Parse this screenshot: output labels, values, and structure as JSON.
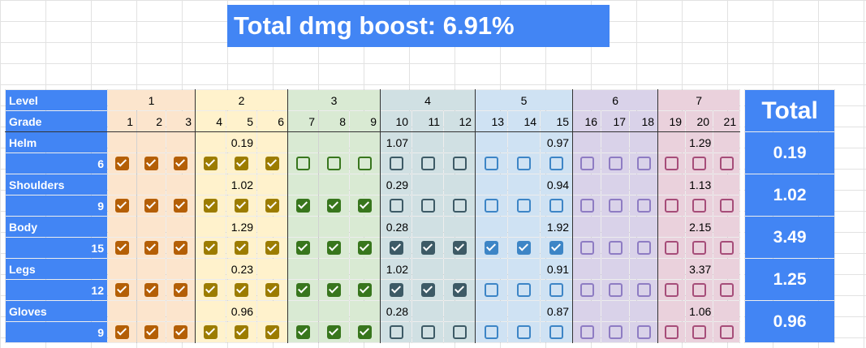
{
  "title": "Total dmg boost: 6.91%",
  "header": {
    "level_label": "Level",
    "grade_label": "Grade",
    "total_label": "Total",
    "levels": [
      "1",
      "2",
      "3",
      "4",
      "5",
      "6",
      "7"
    ],
    "grades": [
      "1",
      "2",
      "3",
      "4",
      "5",
      "6",
      "7",
      "8",
      "9",
      "10",
      "11",
      "12",
      "13",
      "14",
      "15",
      "16",
      "17",
      "18",
      "19",
      "20",
      "21"
    ]
  },
  "level_colors": {
    "bg": [
      "#fce5cd",
      "#fff2cc",
      "#d9ead3",
      "#d0e0e3",
      "#cfe2f3",
      "#d9d2e9",
      "#ead1dc"
    ],
    "box": [
      "#b45f06",
      "#9c7c00",
      "#38761d",
      "#3d5a66",
      "#3d85c6",
      "#8e7cc3",
      "#a64d79"
    ]
  },
  "gear": [
    {
      "name": "Helm",
      "grade": "6",
      "total": "0.19",
      "level_values": [
        "",
        "0.19",
        "",
        "1.07",
        "0.97",
        "",
        "1.29"
      ],
      "checked": 6
    },
    {
      "name": "Shoulders",
      "grade": "9",
      "total": "1.02",
      "level_values": [
        "",
        "1.02",
        "",
        "0.29",
        "0.94",
        "",
        "1.13"
      ],
      "checked": 9
    },
    {
      "name": "Body",
      "grade": "15",
      "total": "3.49",
      "level_values": [
        "",
        "1.29",
        "",
        "0.28",
        "1.92",
        "",
        "2.15"
      ],
      "checked": 15
    },
    {
      "name": "Legs",
      "grade": "12",
      "total": "1.25",
      "level_values": [
        "",
        "0.23",
        "",
        "1.02",
        "0.91",
        "",
        "3.37"
      ],
      "checked": 12
    },
    {
      "name": "Gloves",
      "grade": "9",
      "total": "0.96",
      "level_values": [
        "",
        "0.96",
        "",
        "0.28",
        "0.87",
        "",
        "1.06"
      ],
      "checked": 9
    }
  ]
}
